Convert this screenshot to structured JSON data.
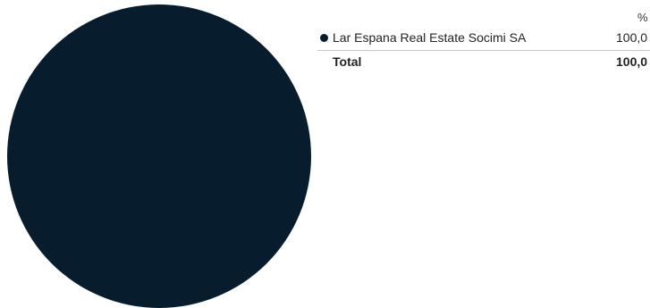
{
  "chart_data": {
    "type": "pie",
    "series": [
      {
        "name": "Lar Espana Real Estate Socimi SA",
        "value": 100.0,
        "label": "100,0",
        "color": "#071c2c"
      }
    ],
    "column_header": "%",
    "total": {
      "label": "Total",
      "value_label": "100,0"
    }
  }
}
